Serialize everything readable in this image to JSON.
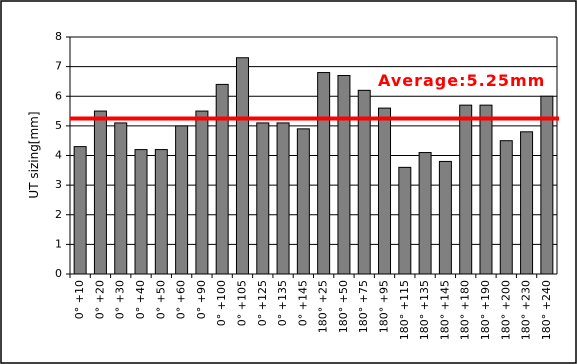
{
  "chart_data": {
    "type": "bar",
    "y_label": "UT sizing[mm]",
    "annotation": "Average:5.25mm",
    "average": 5.25,
    "average_color": "#ff0000",
    "categories": [
      "0° +10",
      "0° +20",
      "0° +30",
      "0° +40",
      "0° +50",
      "0° +60",
      "0° +90",
      "0° +100",
      "0° +105",
      "0° +125",
      "0° +135",
      "0° +145",
      "180° +25",
      "180° +50",
      "180° +75",
      "180° +95",
      "180° +115",
      "180° +135",
      "180° +145",
      "180° +180",
      "180° +190",
      "180° +200",
      "180° +230",
      "180° +240"
    ],
    "values": [
      4.3,
      5.5,
      5.1,
      4.2,
      4.2,
      5.0,
      5.5,
      6.4,
      7.3,
      5.1,
      5.1,
      4.9,
      6.8,
      6.7,
      6.2,
      5.6,
      3.6,
      4.1,
      3.8,
      5.7,
      5.7,
      4.5,
      4.8,
      6.0
    ],
    "color": "#808080",
    "ylim": [
      0,
      8
    ],
    "yticks": [
      0,
      1,
      2,
      3,
      4,
      5,
      6,
      7,
      8
    ],
    "grid": true
  }
}
